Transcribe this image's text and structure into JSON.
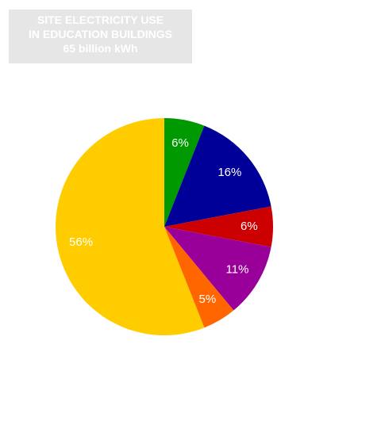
{
  "chart_data": {
    "type": "pie",
    "title": [
      "SITE ELECTRICITY USE",
      "IN EDUCATION BUILDINGS",
      "65 billion kWh"
    ],
    "slices": [
      {
        "value": 6,
        "label": "6%",
        "color": "#009900"
      },
      {
        "value": 16,
        "label": "16%",
        "color": "#000099"
      },
      {
        "value": 6,
        "label": "6%",
        "color": "#cc0000"
      },
      {
        "value": 11,
        "label": "11%",
        "color": "#990099"
      },
      {
        "value": 5,
        "label": "5%",
        "color": "#ff6600"
      },
      {
        "value": 56,
        "label": "56%",
        "color": "#ffcc00"
      }
    ],
    "legend": "none",
    "title_background": "#e6e6e6"
  }
}
